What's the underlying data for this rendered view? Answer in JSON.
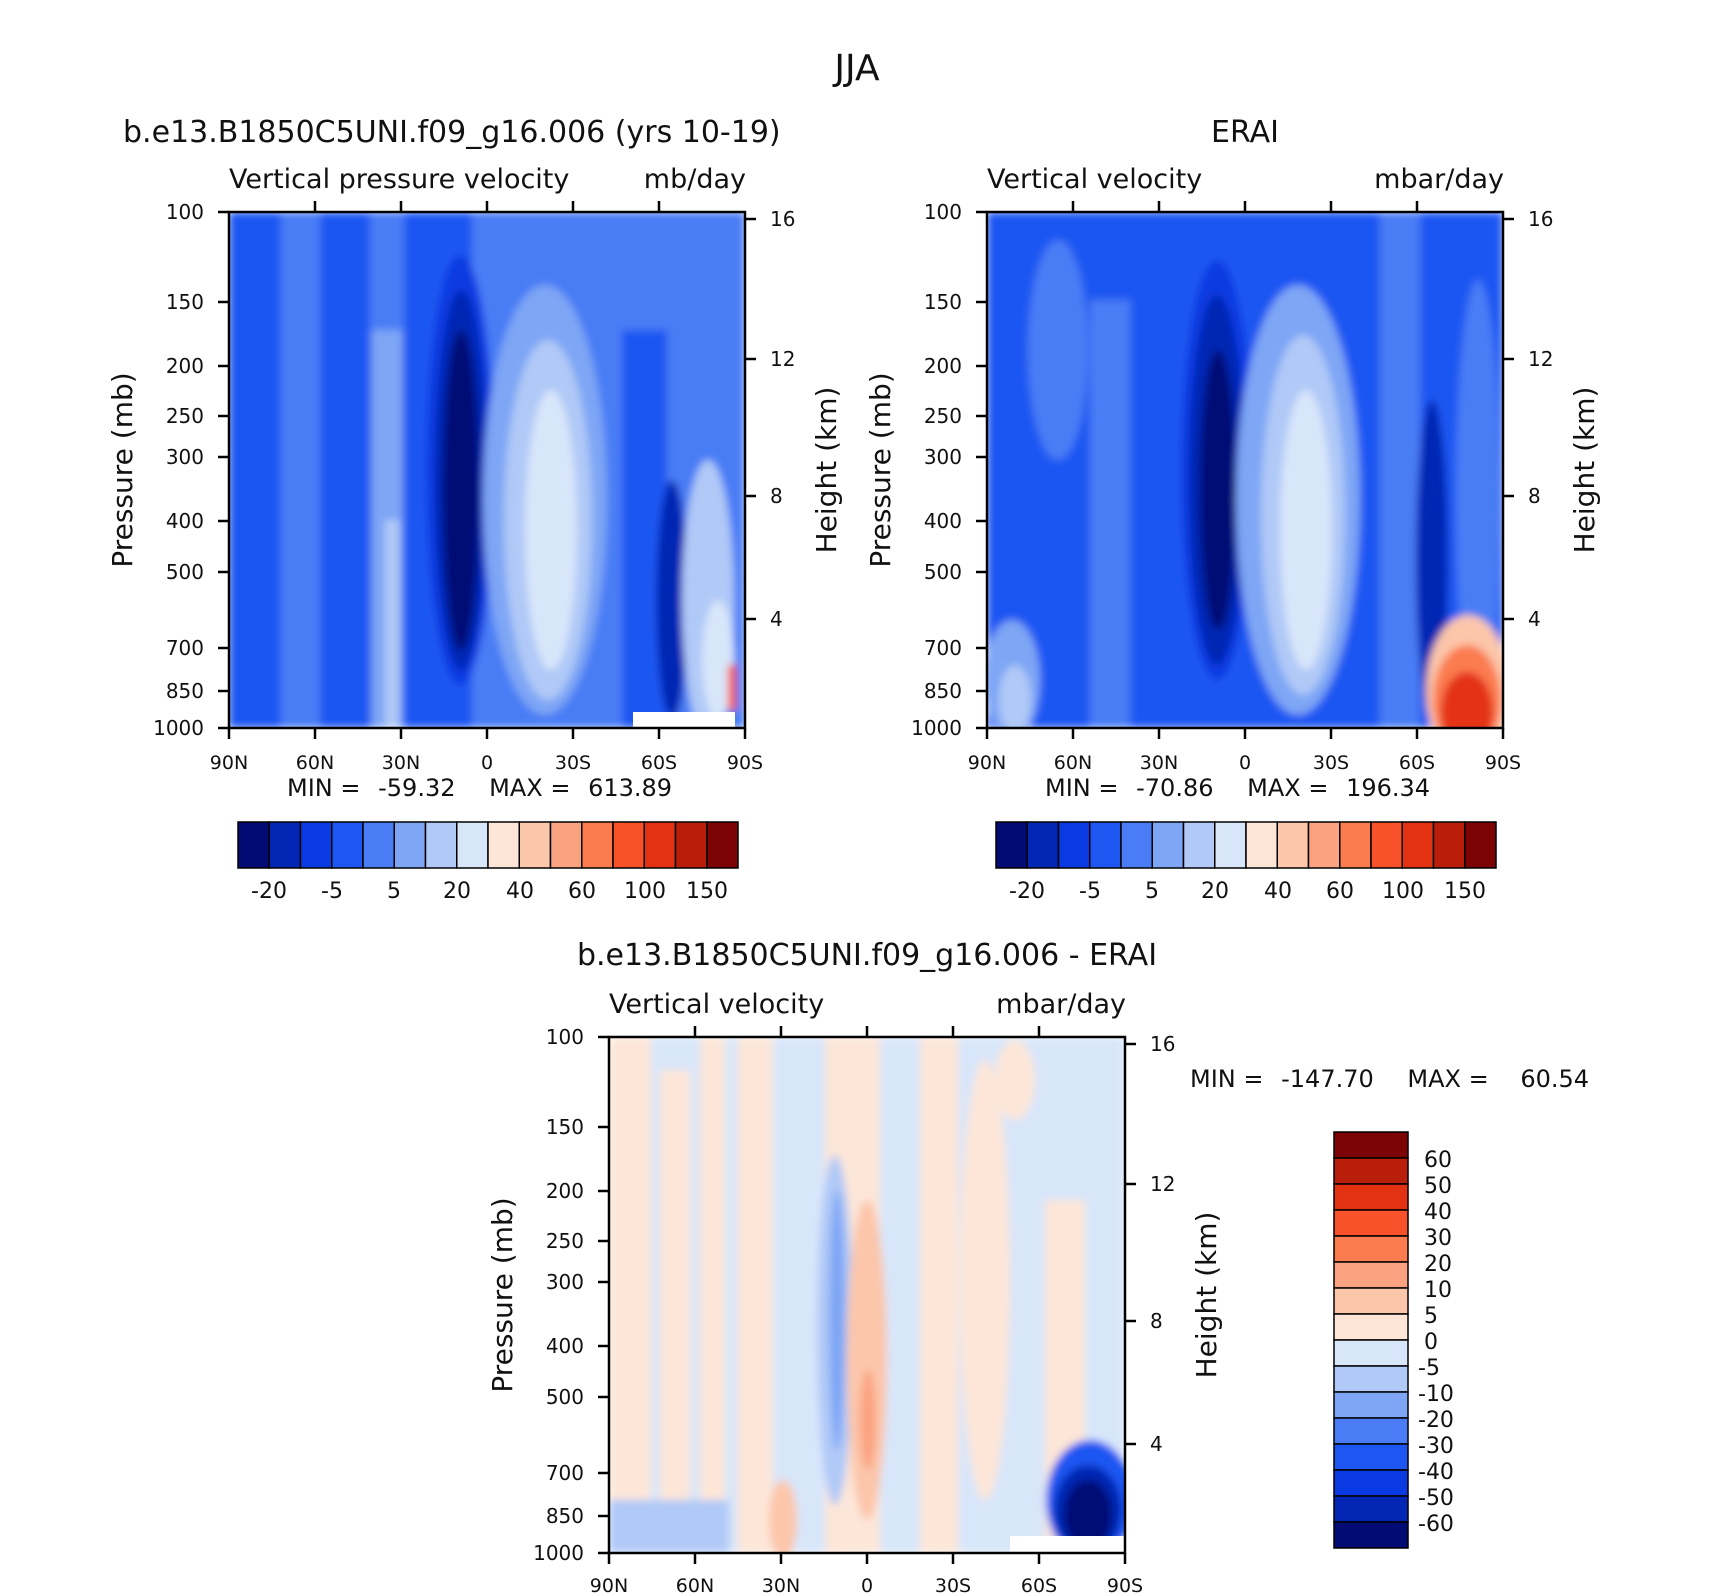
{
  "figure_title": "JJA",
  "chart_data": [
    {
      "type": "heatmap",
      "panel": "model",
      "title": "b.e13.B1850C5UNI.f09_g16.006 (yrs 10-19)",
      "subtitle_left": "Vertical pressure velocity",
      "subtitle_right": "mb/day",
      "xlabel": "",
      "ylabel": "Pressure (mb)",
      "ylabel_right": "Height (km)",
      "x_ticks": [
        "90N",
        "60N",
        "30N",
        "0",
        "30S",
        "60S",
        "90S"
      ],
      "y_ticks": [
        "100",
        "150",
        "200",
        "250",
        "300",
        "400",
        "500",
        "700",
        "850",
        "1000"
      ],
      "y_ticks_right": [
        "16",
        "12",
        "8",
        "4"
      ],
      "stats": {
        "min_label": "MIN =",
        "min": "-59.32",
        "max_label": "MAX =",
        "max": "613.89"
      },
      "colorbar_labels": [
        "-20",
        "-5",
        "5",
        "20",
        "40",
        "60",
        "100",
        "150"
      ],
      "colorbar_colors": [
        "#020a74",
        "#0426b4",
        "#0a3ae2",
        "#1e56f2",
        "#4a7df5",
        "#7ea6f5",
        "#b0c9f7",
        "#d8e6fa",
        "#fde6d8",
        "#fcc6aa",
        "#fba381",
        "#fb7c4f",
        "#f8522b",
        "#e33212",
        "#b81e0a",
        "#7d0404"
      ]
    },
    {
      "type": "heatmap",
      "panel": "obs",
      "title": "ERAI",
      "subtitle_left": "Vertical velocity",
      "subtitle_right": "mbar/day",
      "xlabel": "",
      "ylabel": "Pressure (mb)",
      "ylabel_right": "Height (km)",
      "x_ticks": [
        "90N",
        "60N",
        "30N",
        "0",
        "30S",
        "60S",
        "90S"
      ],
      "y_ticks": [
        "100",
        "150",
        "200",
        "250",
        "300",
        "400",
        "500",
        "700",
        "850",
        "1000"
      ],
      "y_ticks_right": [
        "16",
        "12",
        "8",
        "4"
      ],
      "stats": {
        "min_label": "MIN =",
        "min": "-70.86",
        "max_label": "MAX =",
        "max": "196.34"
      },
      "colorbar_labels": [
        "-20",
        "-5",
        "5",
        "20",
        "40",
        "60",
        "100",
        "150"
      ],
      "colorbar_colors": [
        "#020a74",
        "#0426b4",
        "#0a3ae2",
        "#1e56f2",
        "#4a7df5",
        "#7ea6f5",
        "#b0c9f7",
        "#d8e6fa",
        "#fde6d8",
        "#fcc6aa",
        "#fba381",
        "#fb7c4f",
        "#f8522b",
        "#e33212",
        "#b81e0a",
        "#7d0404"
      ]
    },
    {
      "type": "heatmap",
      "panel": "diff",
      "title": "b.e13.B1850C5UNI.f09_g16.006 - ERAI",
      "subtitle_left": "Vertical velocity",
      "subtitle_right": "mbar/day",
      "xlabel": "",
      "ylabel": "Pressure (mb)",
      "ylabel_right": "Height (km)",
      "x_ticks": [
        "90N",
        "60N",
        "30N",
        "0",
        "30S",
        "60S",
        "90S"
      ],
      "y_ticks": [
        "100",
        "150",
        "200",
        "250",
        "300",
        "400",
        "500",
        "700",
        "850",
        "1000"
      ],
      "y_ticks_right": [
        "16",
        "12",
        "8",
        "4"
      ],
      "stats": {
        "min_label": "MIN =",
        "min": "-147.70",
        "max_label": "MAX =",
        "max": "60.54"
      },
      "colorbar_labels": [
        "60",
        "50",
        "40",
        "30",
        "20",
        "10",
        "5",
        "0",
        "-5",
        "-10",
        "-20",
        "-30",
        "-40",
        "-50",
        "-60"
      ],
      "colorbar_colors": [
        "#7d0404",
        "#b81e0a",
        "#e33212",
        "#f8522b",
        "#fb7c4f",
        "#fba381",
        "#fcc6aa",
        "#fde6d8",
        "#d8e6fa",
        "#b0c9f7",
        "#7ea6f5",
        "#4a7df5",
        "#1e56f2",
        "#0a3ae2",
        "#0426b4",
        "#020a74"
      ]
    }
  ]
}
